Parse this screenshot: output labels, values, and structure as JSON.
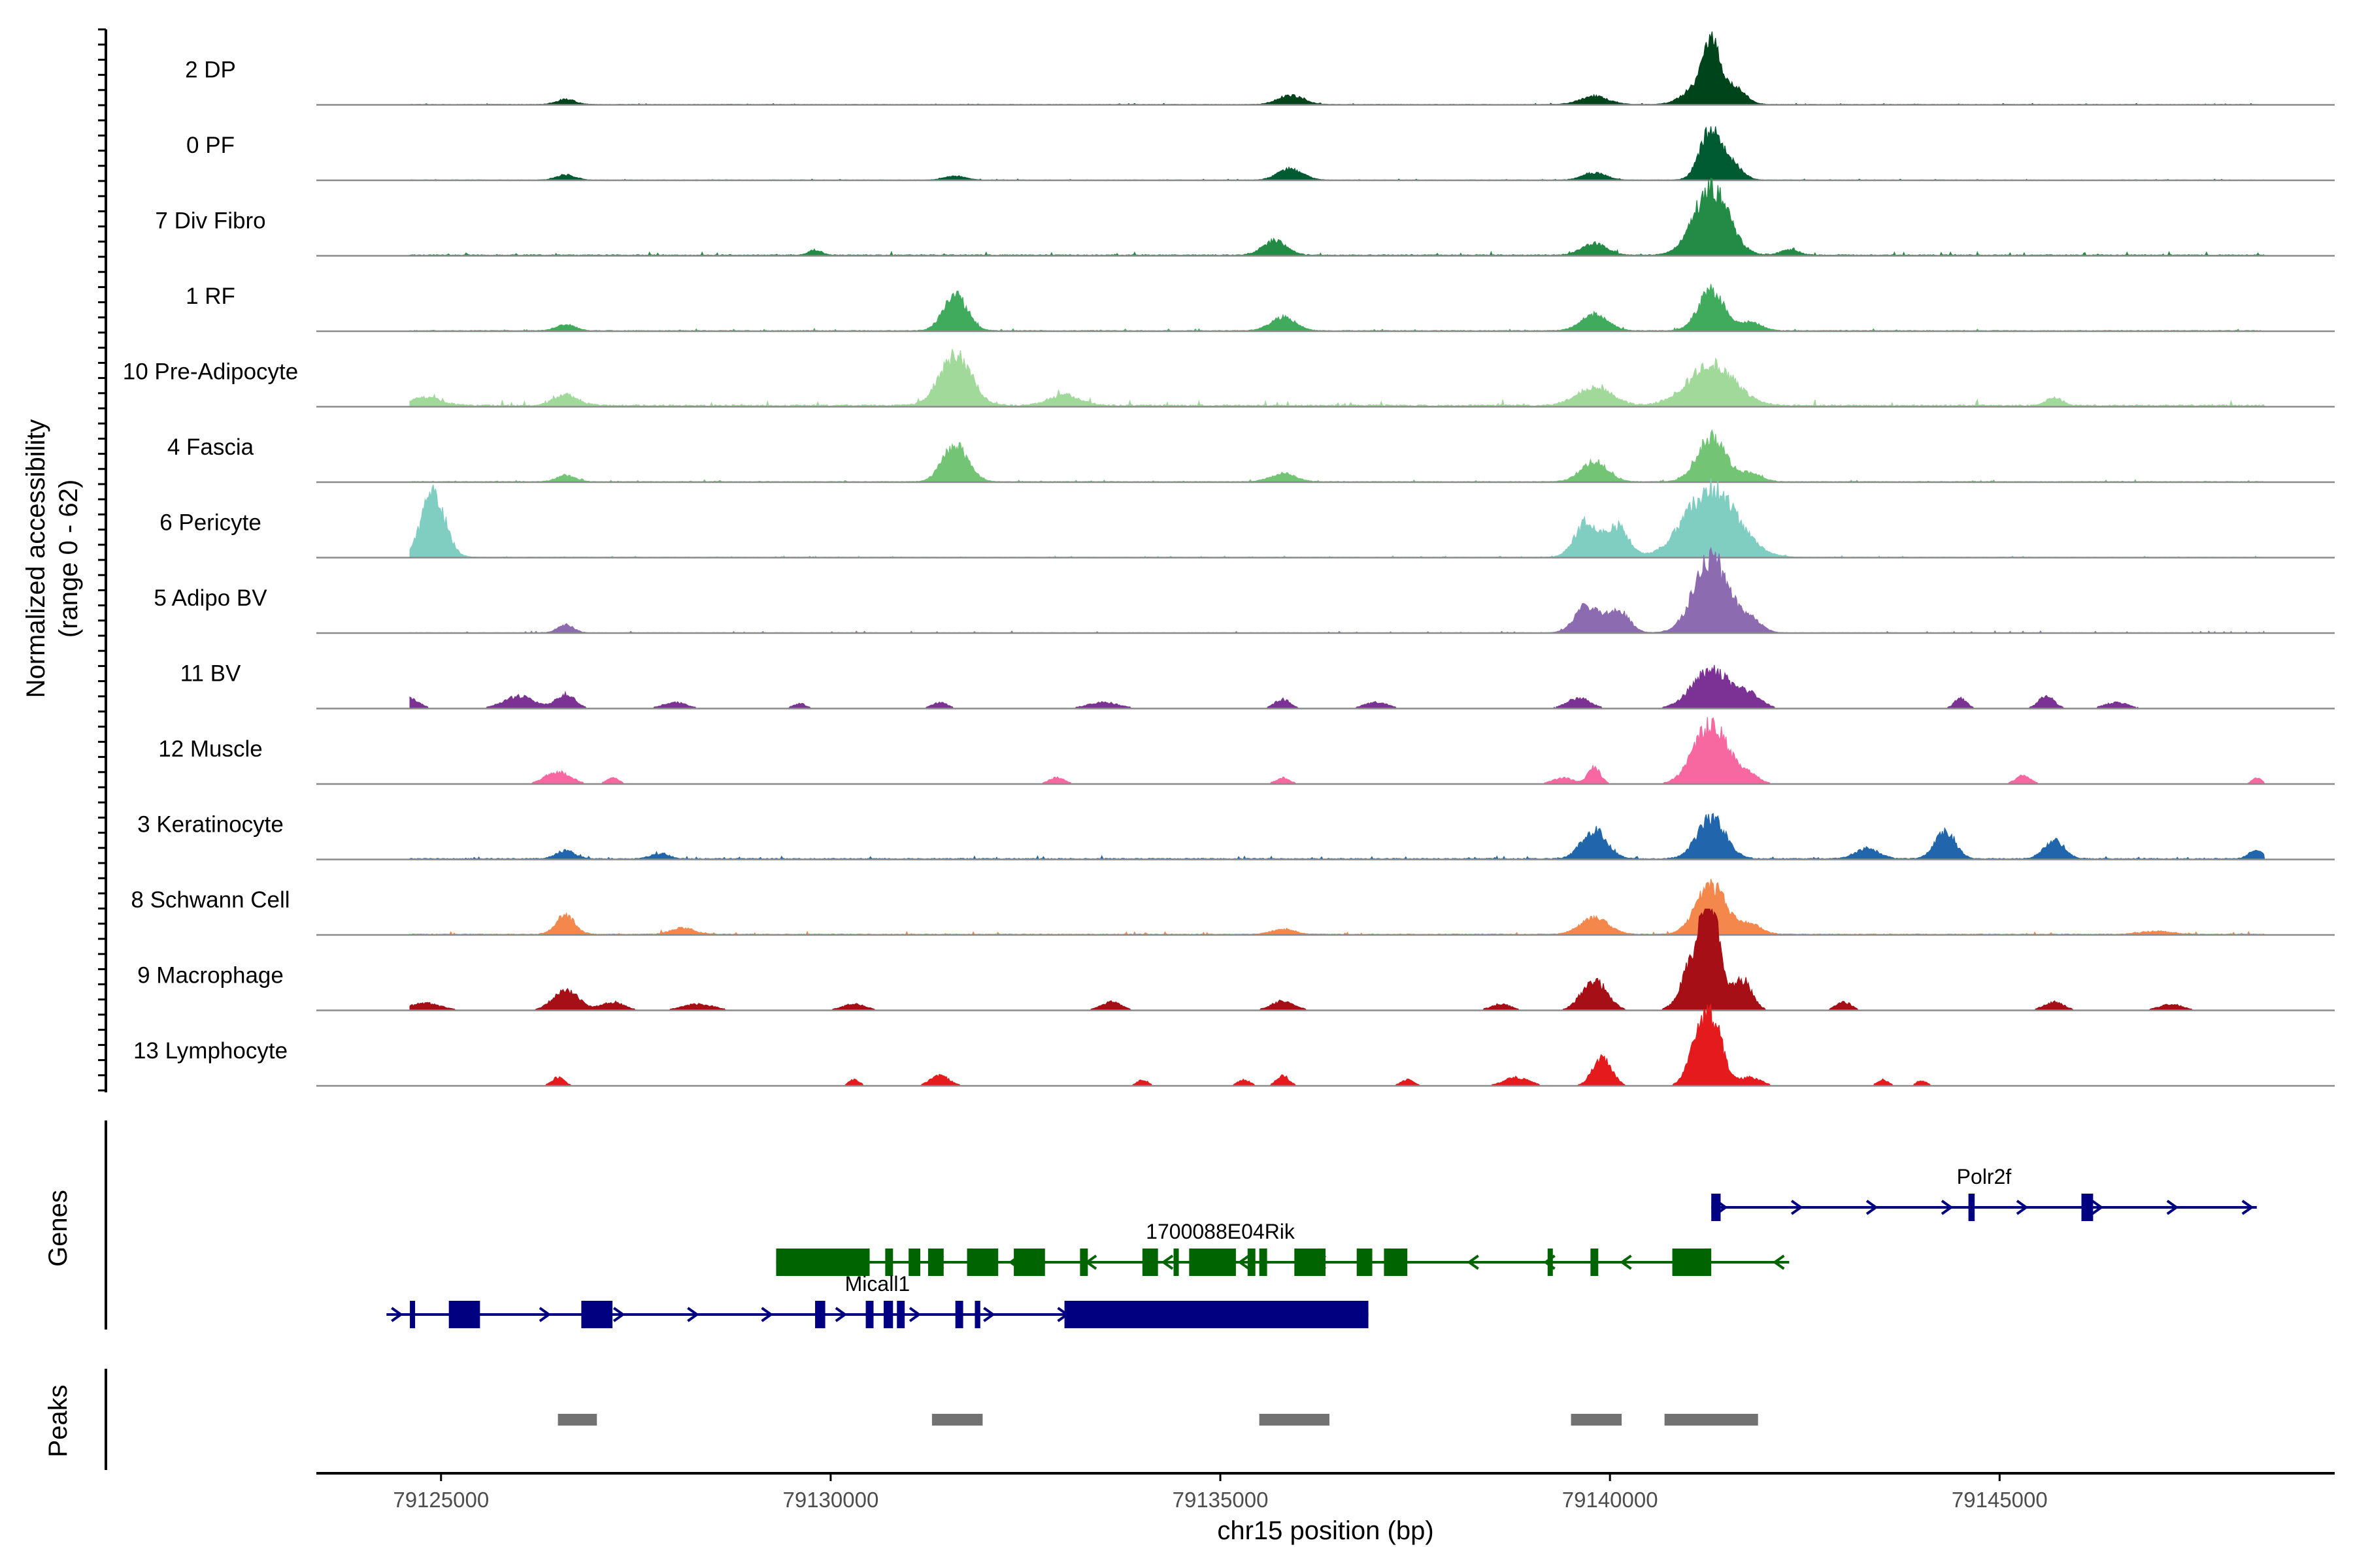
{
  "chart_data": {
    "type": "area",
    "title": "",
    "xlabel": "chr15 position (bp)",
    "ylabel": "Normalized accessibility\n(range 0 - 62)",
    "ylabel_lines": [
      "Normalized accessibility",
      "(range 0 - 62)"
    ],
    "ylim": [
      0,
      62
    ],
    "xlim": [
      79123400,
      79149300
    ],
    "x_ticks": [
      79125000,
      79130000,
      79135000,
      79140000,
      79145000
    ],
    "x_tick_labels": [
      "79125000",
      "79130000",
      "79135000",
      "79140000",
      "79145000"
    ],
    "grid": false,
    "legend": "none",
    "panel_labels": {
      "genes": "Genes",
      "peaks": "Peaks"
    },
    "series": [
      {
        "name": "2 DP",
        "color": "#00441b",
        "baseline": 0.4,
        "noise": 0.35,
        "peaks": [
          [
            79126600,
            120,
            5
          ],
          [
            79135900,
            160,
            9
          ],
          [
            79139800,
            180,
            8
          ],
          [
            79141100,
            180,
            14
          ],
          [
            79141300,
            110,
            58
          ],
          [
            79141600,
            140,
            16
          ]
        ]
      },
      {
        "name": "0 PF",
        "color": "#005a32",
        "baseline": 0.3,
        "noise": 0.3,
        "peaks": [
          [
            79126600,
            120,
            5
          ],
          [
            79131600,
            130,
            4
          ],
          [
            79135900,
            160,
            11
          ],
          [
            79139800,
            150,
            7
          ],
          [
            79141300,
            140,
            50
          ],
          [
            79141600,
            120,
            12
          ]
        ]
      },
      {
        "name": "7 Div Fibro",
        "color": "#238b45",
        "baseline": 0.8,
        "noise": 0.9,
        "peaks": [
          [
            79129800,
            80,
            5
          ],
          [
            79135700,
            150,
            14
          ],
          [
            79139800,
            160,
            11
          ],
          [
            79141300,
            220,
            66
          ],
          [
            79142300,
            120,
            5
          ]
        ]
      },
      {
        "name": "1 RF",
        "color": "#41ab5d",
        "baseline": 0.6,
        "noise": 0.6,
        "peaks": [
          [
            79126600,
            120,
            6
          ],
          [
            79131600,
            150,
            36
          ],
          [
            79135800,
            160,
            13
          ],
          [
            79139800,
            170,
            16
          ],
          [
            79141300,
            160,
            41
          ],
          [
            79141800,
            140,
            8
          ]
        ]
      },
      {
        "name": "10 Pre-Adipocyte",
        "color": "#a1d99b",
        "baseline": 1.4,
        "noise": 1.8,
        "peaks": [
          [
            79124800,
            200,
            8
          ],
          [
            79126600,
            160,
            10
          ],
          [
            79131600,
            200,
            50
          ],
          [
            79133000,
            200,
            10
          ],
          [
            79139800,
            220,
            18
          ],
          [
            79141300,
            300,
            40
          ],
          [
            79145700,
            100,
            8
          ]
        ]
      },
      {
        "name": "4 Fascia",
        "color": "#74c476",
        "baseline": 0.5,
        "noise": 0.5,
        "peaks": [
          [
            79126600,
            120,
            6
          ],
          [
            79131600,
            160,
            36
          ],
          [
            79135800,
            160,
            8
          ],
          [
            79139800,
            170,
            20
          ],
          [
            79141300,
            180,
            44
          ],
          [
            79141800,
            140,
            8
          ]
        ]
      },
      {
        "name": "6 Pericyte",
        "color": "#80cdc1",
        "baseline": 0.4,
        "noise": 0.4,
        "peaks": [
          [
            79124900,
            150,
            62
          ],
          [
            79139700,
            150,
            34
          ],
          [
            79140100,
            140,
            30
          ],
          [
            79141300,
            330,
            66
          ]
        ]
      },
      {
        "name": "5 Adipo BV",
        "color": "#8c6bb1",
        "baseline": 0.3,
        "noise": 0.6,
        "peaks": [
          [
            79126600,
            100,
            8
          ],
          [
            79139700,
            150,
            26
          ],
          [
            79140100,
            140,
            22
          ],
          [
            79141300,
            220,
            72
          ],
          [
            79141800,
            140,
            12
          ]
        ]
      },
      {
        "name": "11 BV",
        "color": "#7b3294",
        "baseline": 0.0,
        "noise": 0.0,
        "peaks": [
          [
            79124600,
            120,
            10
          ],
          [
            79126000,
            200,
            12
          ],
          [
            79126600,
            120,
            14
          ],
          [
            79128000,
            150,
            6
          ],
          [
            79129600,
            80,
            5
          ],
          [
            79131400,
            100,
            6
          ],
          [
            79133500,
            200,
            6
          ],
          [
            79135800,
            100,
            9
          ],
          [
            79137000,
            150,
            6
          ],
          [
            79139600,
            150,
            10
          ],
          [
            79141300,
            240,
            38
          ],
          [
            79141800,
            150,
            12
          ],
          [
            79144500,
            80,
            10
          ],
          [
            79145600,
            100,
            12
          ],
          [
            79146500,
            150,
            6
          ]
        ]
      },
      {
        "name": "12 Muscle",
        "color": "#f768a1",
        "baseline": 0.0,
        "noise": 0.0,
        "peaks": [
          [
            79126500,
            160,
            12
          ],
          [
            79127200,
            80,
            6
          ],
          [
            79132900,
            100,
            6
          ],
          [
            79135800,
            90,
            6
          ],
          [
            79139400,
            130,
            6
          ],
          [
            79139800,
            80,
            16
          ],
          [
            79141300,
            220,
            58
          ],
          [
            79141800,
            120,
            8
          ],
          [
            79145300,
            100,
            8
          ],
          [
            79148300,
            60,
            6
          ]
        ]
      },
      {
        "name": "3 Keratinocyte",
        "color": "#2166ac",
        "baseline": 0.8,
        "noise": 0.8,
        "peaks": [
          [
            79126600,
            120,
            8
          ],
          [
            79127800,
            120,
            5
          ],
          [
            79139800,
            160,
            28
          ],
          [
            79141300,
            180,
            40
          ],
          [
            79143300,
            150,
            10
          ],
          [
            79144300,
            130,
            26
          ],
          [
            79145700,
            130,
            18
          ],
          [
            79148300,
            100,
            8
          ]
        ]
      },
      {
        "name": "8 Schwann Cell",
        "color": "#f4874c",
        "baseline": 0.7,
        "noise": 0.8,
        "peaks": [
          [
            79126600,
            120,
            18
          ],
          [
            79128100,
            150,
            6
          ],
          [
            79135800,
            150,
            5
          ],
          [
            79139800,
            180,
            16
          ],
          [
            79141300,
            190,
            48
          ],
          [
            79141800,
            140,
            10
          ],
          [
            79147000,
            200,
            3
          ]
        ]
      },
      {
        "name": "9 Macrophage",
        "color": "#a50f15",
        "baseline": 0.0,
        "noise": 0.0,
        "peaks": [
          [
            79124800,
            200,
            7
          ],
          [
            79126600,
            160,
            20
          ],
          [
            79127200,
            150,
            8
          ],
          [
            79128300,
            200,
            6
          ],
          [
            79130300,
            150,
            6
          ],
          [
            79133600,
            130,
            8
          ],
          [
            79135800,
            150,
            9
          ],
          [
            79138600,
            130,
            6
          ],
          [
            79139800,
            160,
            30
          ],
          [
            79141100,
            160,
            50
          ],
          [
            79141300,
            120,
            88
          ],
          [
            79141700,
            120,
            30
          ],
          [
            79143000,
            100,
            8
          ],
          [
            79145700,
            130,
            8
          ],
          [
            79147200,
            150,
            6
          ]
        ]
      },
      {
        "name": "13 Lymphocyte",
        "color": "#e41a1c",
        "baseline": 0.0,
        "noise": 0.0,
        "peaks": [
          [
            79126500,
            80,
            8
          ],
          [
            79130300,
            70,
            6
          ],
          [
            79131400,
            120,
            10
          ],
          [
            79134000,
            70,
            6
          ],
          [
            79135300,
            80,
            6
          ],
          [
            79135800,
            80,
            10
          ],
          [
            79137400,
            80,
            6
          ],
          [
            79138800,
            160,
            8
          ],
          [
            79139900,
            120,
            28
          ],
          [
            79141100,
            120,
            26
          ],
          [
            79141300,
            140,
            65
          ],
          [
            79141800,
            140,
            8
          ],
          [
            79143500,
            70,
            6
          ],
          [
            79144000,
            70,
            5
          ]
        ]
      }
    ],
    "genes": [
      {
        "name": "Polr2f",
        "strand": "+",
        "color": "#000080",
        "row": 0,
        "label_x": 79144800,
        "start": 79141300,
        "end": 79148300,
        "exons": [
          [
            79141300,
            79141420
          ],
          [
            79144600,
            79144680
          ],
          [
            79146050,
            79146200
          ]
        ]
      },
      {
        "name": "1700088E04Rik",
        "strand": "-",
        "color": "#006400",
        "row": 1,
        "label_x": 79135000,
        "start": 79129300,
        "end": 79142300,
        "exons": [
          [
            79129300,
            79130500
          ],
          [
            79130700,
            79130800
          ],
          [
            79131000,
            79131150
          ],
          [
            79131250,
            79131450
          ],
          [
            79131750,
            79132150
          ],
          [
            79132350,
            79132750
          ],
          [
            79133200,
            79133300
          ],
          [
            79134000,
            79134200
          ],
          [
            79134400,
            79134450
          ],
          [
            79134600,
            79135200
          ],
          [
            79135350,
            79135450
          ],
          [
            79135500,
            79135600
          ],
          [
            79135950,
            79136350
          ],
          [
            79136750,
            79136950
          ],
          [
            79137100,
            79137400
          ],
          [
            79139200,
            79139250
          ],
          [
            79139750,
            79139850
          ],
          [
            79140800,
            79141300
          ]
        ]
      },
      {
        "name": "Micall1",
        "strand": "+",
        "color": "#000080",
        "row": 2,
        "label_x": 79130600,
        "start": 79124300,
        "end": 79136900,
        "exons": [
          [
            79124600,
            79124650
          ],
          [
            79125100,
            79125500
          ],
          [
            79126800,
            79127200
          ],
          [
            79129800,
            79129930
          ],
          [
            79130450,
            79130550
          ],
          [
            79130680,
            79130800
          ],
          [
            79130850,
            79130950
          ],
          [
            79131600,
            79131700
          ],
          [
            79131850,
            79131920
          ],
          [
            79133000,
            79136900
          ]
        ]
      }
    ],
    "peaks_track": [
      [
        79126500,
        79127000
      ],
      [
        79131300,
        79131950
      ],
      [
        79135500,
        79136400
      ],
      [
        79139500,
        79140150
      ],
      [
        79140700,
        79141900
      ]
    ]
  }
}
